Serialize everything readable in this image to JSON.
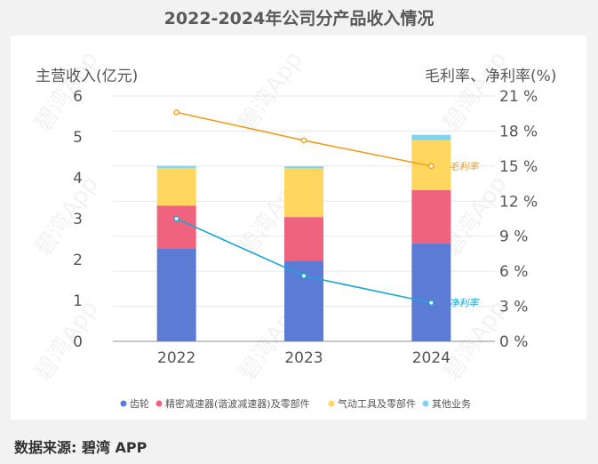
{
  "title": "2022-2024年公司分产品收入情况",
  "source": "数据来源: 碧湾 APP",
  "watermark": "碧湾App",
  "chart_data": {
    "type": "bar",
    "stacked": true,
    "categories": [
      "2022",
      "2023",
      "2024"
    ],
    "ylabel_left": "主营收入(亿元)",
    "ylabel_right": "毛利率、净利率(%)",
    "ylim_left": [
      0,
      6
    ],
    "yticks_left": [
      "0",
      "1",
      "2",
      "3",
      "4",
      "5",
      "6"
    ],
    "ylim_right": [
      0,
      21
    ],
    "yticks_right": [
      "0 %",
      "3 %",
      "6 %",
      "9 %",
      "12 %",
      "15 %",
      "18 %",
      "21 %"
    ],
    "series": [
      {
        "name": "齿轮",
        "color": "#5b7bd5",
        "values": [
          2.27,
          1.97,
          2.39
        ]
      },
      {
        "name": "精密减速器(谐波减速器)及零部件",
        "color": "#f0637f",
        "values": [
          1.05,
          1.07,
          1.31
        ]
      },
      {
        "name": "气动工具及零部件",
        "color": "#ffd75e",
        "values": [
          0.92,
          1.19,
          1.22
        ]
      },
      {
        "name": "其他业务",
        "color": "#7fd4ee",
        "values": [
          0.05,
          0.05,
          0.13
        ]
      }
    ],
    "lines": [
      {
        "name": "毛利率",
        "label": "毛利率",
        "color": "#f29b1d",
        "values": [
          19.6,
          17.2,
          15.0
        ]
      },
      {
        "name": "净利率",
        "label": "净利率",
        "color": "#1aa7d4",
        "values": [
          10.5,
          5.6,
          3.3
        ]
      }
    ]
  }
}
